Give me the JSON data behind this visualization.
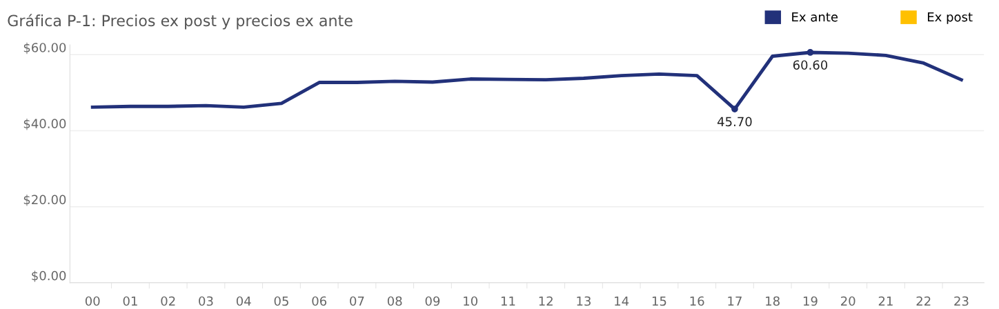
{
  "chart_data": {
    "type": "line",
    "title": "Gráfica P-1: Precios ex post y precios ex ante",
    "categories": [
      "00",
      "01",
      "02",
      "03",
      "04",
      "05",
      "06",
      "07",
      "08",
      "09",
      "10",
      "11",
      "12",
      "13",
      "14",
      "15",
      "16",
      "17",
      "18",
      "19",
      "20",
      "21",
      "22",
      "23"
    ],
    "series": [
      {
        "name": "Ex ante",
        "color": "#22317a",
        "values": [
          46.2,
          46.4,
          46.4,
          46.6,
          46.2,
          47.2,
          52.7,
          52.7,
          53.0,
          52.8,
          53.6,
          53.5,
          53.4,
          53.8,
          54.5,
          54.9,
          54.5,
          45.7,
          59.6,
          60.6,
          60.4,
          59.8,
          57.8,
          53.4
        ],
        "value_labels": [
          null,
          null,
          null,
          null,
          null,
          null,
          null,
          null,
          null,
          null,
          null,
          null,
          null,
          null,
          null,
          null,
          null,
          "45.70",
          null,
          "60.60",
          null,
          null,
          null,
          null
        ]
      },
      {
        "name": "Ex post",
        "color": "#ffc000",
        "values": [
          null,
          null,
          null,
          null,
          null,
          null,
          null,
          null,
          null,
          null,
          null,
          null,
          null,
          null,
          null,
          null,
          null,
          null,
          null,
          null,
          null,
          null,
          null,
          null
        ]
      }
    ],
    "ylim": [
      0,
      62.6
    ],
    "yticks": [
      {
        "value": 0,
        "label": "$0.00"
      },
      {
        "value": 20,
        "label": "$20.00"
      },
      {
        "value": 40,
        "label": "$40.00"
      },
      {
        "value": 60,
        "label": "$60.00"
      }
    ],
    "grid": "y",
    "legend": "top right"
  }
}
